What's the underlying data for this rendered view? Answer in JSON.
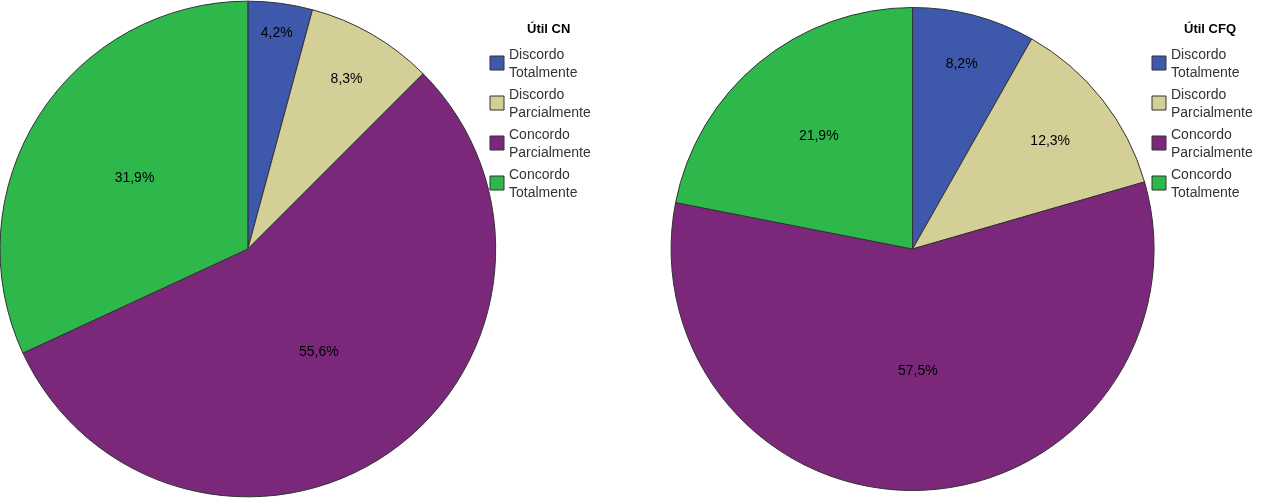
{
  "chart_data": [
    {
      "type": "pie",
      "legend_title": "Útil CN",
      "categories": [
        "Discordo Totalmente",
        "Discordo Parcialmente",
        "Concordo Parcialmente",
        "Concordo Totalmente"
      ],
      "values": [
        4.2,
        8.3,
        55.6,
        31.9
      ],
      "value_labels": [
        "4,2%",
        "8,3%",
        "55,6%",
        "31,9%"
      ],
      "colors": [
        "#3e58ac",
        "#d4cf97",
        "#7b287b",
        "#2eb84b"
      ],
      "legend": "right"
    },
    {
      "type": "pie",
      "legend_title": "Útil CFQ",
      "categories": [
        "Discordo Totalmente",
        "Discordo Parcialmente",
        "Concordo Parcialmente",
        "Concordo Totalmente"
      ],
      "values": [
        8.2,
        12.3,
        57.5,
        21.9
      ],
      "value_labels": [
        "8,2%",
        "12,3%",
        "57,5%",
        "21,9%"
      ],
      "colors": [
        "#3e58ac",
        "#d4cf97",
        "#7b287b",
        "#2eb84b"
      ],
      "legend": "right"
    }
  ]
}
